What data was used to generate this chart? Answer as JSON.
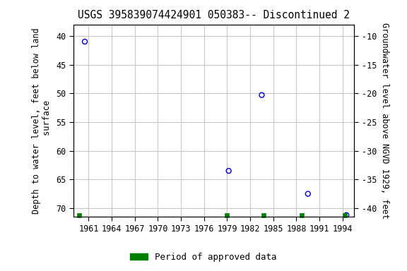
{
  "title": "USGS 395839074424901 050383-- Discontinued 2",
  "xlabel_years": [
    1961,
    1964,
    1967,
    1970,
    1973,
    1976,
    1979,
    1982,
    1985,
    1988,
    1991,
    1994
  ],
  "xlim": [
    1959.0,
    1995.5
  ],
  "ylabel_left": "Depth to water level, feet below land\n surface",
  "ylabel_right": "Groundwater level above NGVD 1929, feet",
  "ylim_left_top": 38.0,
  "ylim_left_bottom": 71.5,
  "ylim_right_top": -8.0,
  "ylim_right_bottom": -41.5,
  "left_yticks": [
    40,
    45,
    50,
    55,
    60,
    65,
    70
  ],
  "right_yticks": [
    -10,
    -15,
    -20,
    -25,
    -30,
    -35,
    -40
  ],
  "data_points": [
    {
      "year": 1960.5,
      "depth": 41.0
    },
    {
      "year": 1979.2,
      "depth": 63.5
    },
    {
      "year": 1983.5,
      "depth": 50.3
    },
    {
      "year": 1989.5,
      "depth": 67.5
    },
    {
      "year": 1994.5,
      "depth": 71.2
    }
  ],
  "green_bars": [
    {
      "year": 1959.8
    },
    {
      "year": 1979.0
    },
    {
      "year": 1983.7
    },
    {
      "year": 1988.7
    },
    {
      "year": 1994.3
    }
  ],
  "dot_color": "#0000cc",
  "dot_size": 25,
  "green_color": "#008000",
  "background_color": "#ffffff",
  "plot_bg_color": "#ffffff",
  "grid_color": "#c8c8c8",
  "title_fontsize": 10.5,
  "axis_label_fontsize": 8.5,
  "tick_fontsize": 8.5,
  "legend_label": "Period of approved data",
  "legend_fontsize": 9
}
